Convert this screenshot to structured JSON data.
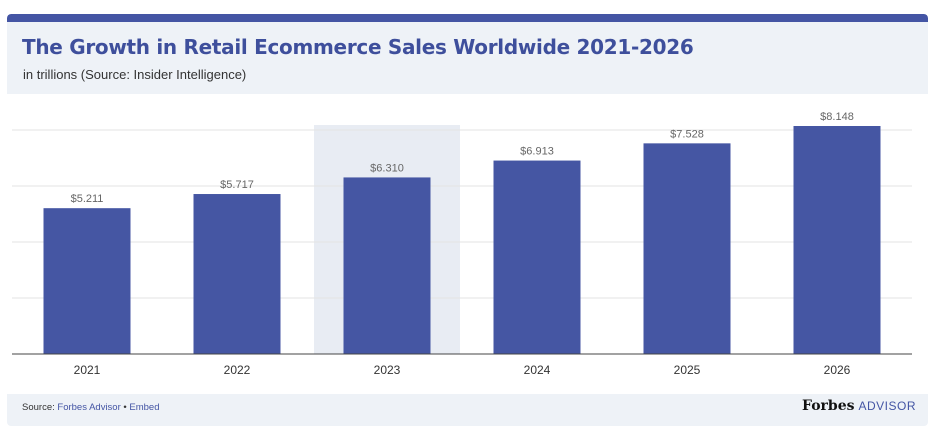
{
  "header": {
    "title": "The Growth in Retail Ecommerce Sales Worldwide 2021-2026",
    "subtitle": "in trillions (Source: Insider Intelligence)"
  },
  "footer": {
    "source_prefix": "Source:",
    "source_name": "Forbes Advisor",
    "separator": "•",
    "embed_label": "Embed",
    "brand_name": "Forbes",
    "brand_suffix": "ADVISOR"
  },
  "colors": {
    "accent": "#4455a4",
    "bar": "#4556a3",
    "highlight": "#e8ecf3",
    "grid": "#e3e3e3"
  },
  "chart_data": {
    "type": "bar",
    "categories": [
      "2021",
      "2022",
      "2023",
      "2024",
      "2025",
      "2026"
    ],
    "values": [
      5.211,
      5.717,
      6.31,
      6.913,
      7.528,
      8.148
    ],
    "data_labels": [
      "$5.211",
      "$5.717",
      "$6.310",
      "$6.913",
      "$7.528",
      "$8.148"
    ],
    "highlighted_category": "2023",
    "title": "The Growth in Retail Ecommerce Sales Worldwide 2021-2026",
    "xlabel": "",
    "ylabel": "",
    "ylim": [
      0,
      8.148
    ],
    "grid": true,
    "legend": "none"
  }
}
